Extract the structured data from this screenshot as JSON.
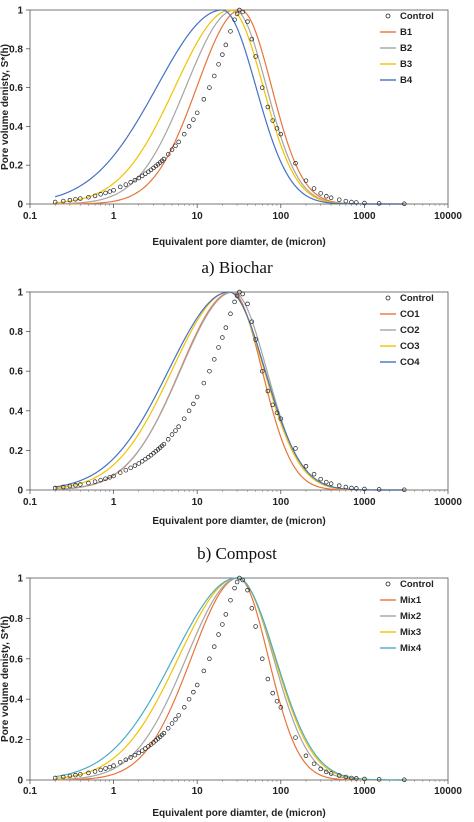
{
  "chart_data": [
    {
      "type": "line",
      "caption": "a)  Biochar",
      "xlabel": "Equivalent pore diamter, de (micron)",
      "ylabel": "Pore volume denisty, S*(h)",
      "xscale": "log",
      "xlim": [
        0.1,
        10000
      ],
      "ylim": [
        0,
        1
      ],
      "xticks": [
        "0.1",
        "1",
        "10",
        "100",
        "1000",
        "10000"
      ],
      "yticks": [
        "0",
        "0.2",
        "0.4",
        "0.6",
        "0.8",
        "1"
      ],
      "grid": false,
      "legend": "top-right",
      "control": {
        "name": "Control",
        "x": [
          0.2,
          0.25,
          0.3,
          0.35,
          0.4,
          0.5,
          0.6,
          0.7,
          0.8,
          0.9,
          1,
          1.2,
          1.4,
          1.6,
          1.8,
          2,
          2.2,
          2.4,
          2.6,
          2.8,
          3,
          3.2,
          3.4,
          3.6,
          3.8,
          4,
          4.5,
          5,
          5.5,
          6,
          7,
          8,
          9,
          10,
          12,
          14,
          16,
          18,
          20,
          22,
          25,
          28,
          30,
          32,
          35,
          40,
          45,
          50,
          60,
          70,
          80,
          90,
          100,
          150,
          200,
          250,
          300,
          350,
          400,
          500,
          600,
          700,
          800,
          1000,
          1500,
          3000
        ],
        "y": [
          0.01,
          0.015,
          0.02,
          0.024,
          0.028,
          0.035,
          0.042,
          0.05,
          0.057,
          0.064,
          0.071,
          0.088,
          0.1,
          0.112,
          0.123,
          0.134,
          0.145,
          0.156,
          0.166,
          0.176,
          0.186,
          0.196,
          0.205,
          0.214,
          0.223,
          0.232,
          0.256,
          0.28,
          0.3,
          0.32,
          0.36,
          0.4,
          0.435,
          0.47,
          0.54,
          0.6,
          0.66,
          0.72,
          0.77,
          0.82,
          0.89,
          0.95,
          0.98,
          1.0,
          0.99,
          0.94,
          0.85,
          0.76,
          0.6,
          0.5,
          0.43,
          0.39,
          0.36,
          0.21,
          0.12,
          0.08,
          0.055,
          0.04,
          0.032,
          0.022,
          0.015,
          0.01,
          0.008,
          0.005,
          0.003,
          0.001
        ]
      },
      "series": [
        {
          "name": "B1",
          "color": "#e8743b",
          "peak": 33,
          "sigma_l": 0.52,
          "sigma_r": 0.37
        },
        {
          "name": "B2",
          "color": "#a5a5a5",
          "peak": 28,
          "sigma_l": 0.58,
          "sigma_r": 0.38
        },
        {
          "name": "B3",
          "color": "#f2c200",
          "peak": 25,
          "sigma_l": 0.66,
          "sigma_r": 0.39
        },
        {
          "name": "B4",
          "color": "#4472c4",
          "peak": 20,
          "sigma_l": 0.78,
          "sigma_r": 0.4
        }
      ]
    },
    {
      "type": "line",
      "caption": "b)  Compost",
      "xlabel": "Equivalent pore diamter, de (micron)",
      "ylabel": "",
      "xscale": "log",
      "xlim": [
        0.1,
        10000
      ],
      "ylim": [
        0,
        1
      ],
      "xticks": [
        "0.1",
        "1",
        "10",
        "100",
        "1000",
        "10000"
      ],
      "yticks": [
        "0",
        "0.2",
        "0.4",
        "0.6",
        "0.8",
        "1"
      ],
      "grid": false,
      "legend": "top-right",
      "control": {
        "name": "Control",
        "x": [
          0.2,
          0.25,
          0.3,
          0.35,
          0.4,
          0.5,
          0.6,
          0.7,
          0.8,
          0.9,
          1,
          1.2,
          1.4,
          1.6,
          1.8,
          2,
          2.2,
          2.4,
          2.6,
          2.8,
          3,
          3.2,
          3.4,
          3.6,
          3.8,
          4,
          4.5,
          5,
          5.5,
          6,
          7,
          8,
          9,
          10,
          12,
          14,
          16,
          18,
          20,
          22,
          25,
          28,
          30,
          32,
          35,
          40,
          45,
          50,
          60,
          70,
          80,
          90,
          100,
          150,
          200,
          250,
          300,
          350,
          400,
          500,
          600,
          700,
          800,
          1000,
          1500,
          3000
        ],
        "y": [
          0.01,
          0.015,
          0.02,
          0.024,
          0.028,
          0.035,
          0.042,
          0.05,
          0.057,
          0.064,
          0.071,
          0.088,
          0.1,
          0.112,
          0.123,
          0.134,
          0.145,
          0.156,
          0.166,
          0.176,
          0.186,
          0.196,
          0.205,
          0.214,
          0.223,
          0.232,
          0.256,
          0.28,
          0.3,
          0.32,
          0.36,
          0.4,
          0.435,
          0.47,
          0.54,
          0.6,
          0.66,
          0.72,
          0.77,
          0.82,
          0.89,
          0.95,
          0.98,
          1.0,
          0.99,
          0.94,
          0.85,
          0.76,
          0.6,
          0.5,
          0.43,
          0.39,
          0.36,
          0.21,
          0.12,
          0.08,
          0.055,
          0.04,
          0.032,
          0.022,
          0.015,
          0.01,
          0.008,
          0.005,
          0.003,
          0.001
        ]
      },
      "series": [
        {
          "name": "CO1",
          "color": "#e8743b",
          "peak": 26,
          "sigma_l": 0.62,
          "sigma_r": 0.36
        },
        {
          "name": "CO2",
          "color": "#a5a5a5",
          "peak": 27,
          "sigma_l": 0.63,
          "sigma_r": 0.4
        },
        {
          "name": "CO3",
          "color": "#f2c200",
          "peak": 24,
          "sigma_l": 0.68,
          "sigma_r": 0.42
        },
        {
          "name": "CO4",
          "color": "#4472c4",
          "peak": 24,
          "sigma_l": 0.72,
          "sigma_r": 0.43
        }
      ]
    },
    {
      "type": "line",
      "caption": "",
      "xlabel": "Equivalent pore diamter, de (micron)",
      "ylabel": "Pore volume denisty, S*(h)",
      "xscale": "log",
      "xlim": [
        0.1,
        10000
      ],
      "ylim": [
        0,
        1
      ],
      "xticks": [
        "0.1",
        "1",
        "10",
        "100",
        "1000",
        "10000"
      ],
      "yticks": [
        "0",
        "0.2",
        "0.4",
        "0.6",
        "0.8",
        "1"
      ],
      "grid": false,
      "legend": "top-right",
      "control": {
        "name": "Control",
        "x": [
          0.2,
          0.25,
          0.3,
          0.35,
          0.4,
          0.5,
          0.6,
          0.7,
          0.8,
          0.9,
          1,
          1.2,
          1.4,
          1.6,
          1.8,
          2,
          2.2,
          2.4,
          2.6,
          2.8,
          3,
          3.2,
          3.4,
          3.6,
          3.8,
          4,
          4.5,
          5,
          5.5,
          6,
          7,
          8,
          9,
          10,
          12,
          14,
          16,
          18,
          20,
          22,
          25,
          28,
          30,
          32,
          35,
          40,
          45,
          50,
          60,
          70,
          80,
          90,
          100,
          150,
          200,
          250,
          300,
          350,
          400,
          500,
          600,
          700,
          800,
          1000,
          1500,
          3000
        ],
        "y": [
          0.01,
          0.015,
          0.02,
          0.024,
          0.028,
          0.035,
          0.042,
          0.05,
          0.057,
          0.064,
          0.071,
          0.088,
          0.1,
          0.112,
          0.123,
          0.134,
          0.145,
          0.156,
          0.166,
          0.176,
          0.186,
          0.196,
          0.205,
          0.214,
          0.223,
          0.232,
          0.256,
          0.28,
          0.3,
          0.32,
          0.36,
          0.4,
          0.435,
          0.47,
          0.54,
          0.6,
          0.66,
          0.72,
          0.77,
          0.82,
          0.89,
          0.95,
          0.98,
          1.0,
          0.99,
          0.94,
          0.85,
          0.76,
          0.6,
          0.5,
          0.43,
          0.39,
          0.36,
          0.21,
          0.12,
          0.08,
          0.055,
          0.04,
          0.032,
          0.022,
          0.015,
          0.01,
          0.008,
          0.005,
          0.003,
          0.001
        ]
      },
      "series": [
        {
          "name": "Mix1",
          "color": "#e8743b",
          "peak": 31,
          "sigma_l": 0.56,
          "sigma_r": 0.36
        },
        {
          "name": "Mix2",
          "color": "#a5a5a5",
          "peak": 31,
          "sigma_l": 0.62,
          "sigma_r": 0.42
        },
        {
          "name": "Mix3",
          "color": "#f2c200",
          "peak": 30,
          "sigma_l": 0.7,
          "sigma_r": 0.45
        },
        {
          "name": "Mix4",
          "color": "#4bacc6",
          "peak": 30,
          "sigma_l": 0.76,
          "sigma_r": 0.46
        }
      ]
    }
  ]
}
